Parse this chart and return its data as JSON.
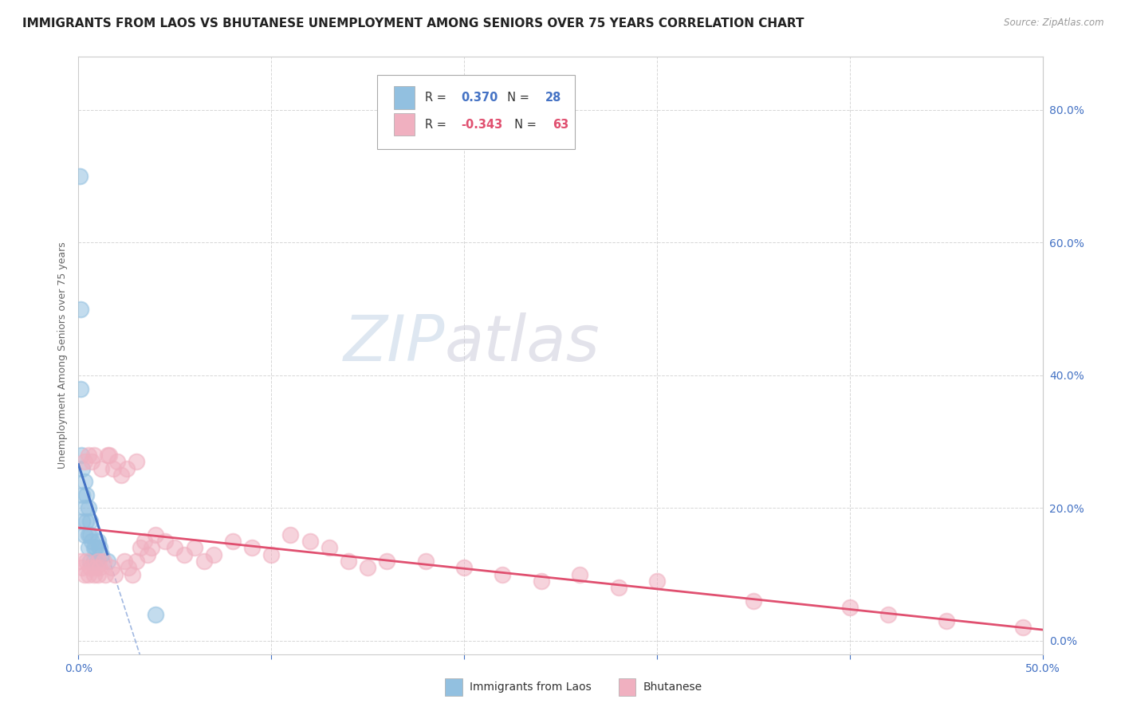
{
  "title": "IMMIGRANTS FROM LAOS VS BHUTANESE UNEMPLOYMENT AMONG SENIORS OVER 75 YEARS CORRELATION CHART",
  "source": "Source: ZipAtlas.com",
  "ylabel": "Unemployment Among Seniors over 75 years",
  "ytick_values": [
    0.0,
    0.2,
    0.4,
    0.6,
    0.8
  ],
  "xlim": [
    0.0,
    0.5
  ],
  "ylim": [
    -0.02,
    0.88
  ],
  "legend_entries": [
    {
      "label": "Immigrants from Laos",
      "R": "0.370",
      "N": "28",
      "color": "#a8c8e8"
    },
    {
      "label": "Bhutanese",
      "R": "-0.343",
      "N": "63",
      "color": "#f4b8c8"
    }
  ],
  "blue_scatter_x": [
    0.0005,
    0.001,
    0.001,
    0.0015,
    0.002,
    0.002,
    0.002,
    0.003,
    0.003,
    0.003,
    0.004,
    0.004,
    0.005,
    0.005,
    0.005,
    0.006,
    0.006,
    0.006,
    0.007,
    0.008,
    0.008,
    0.009,
    0.01,
    0.01,
    0.011,
    0.012,
    0.015,
    0.04
  ],
  "blue_scatter_y": [
    0.7,
    0.5,
    0.38,
    0.28,
    0.26,
    0.22,
    0.18,
    0.24,
    0.2,
    0.16,
    0.22,
    0.18,
    0.2,
    0.16,
    0.14,
    0.18,
    0.16,
    0.12,
    0.15,
    0.14,
    0.12,
    0.14,
    0.15,
    0.12,
    0.14,
    0.13,
    0.12,
    0.04
  ],
  "pink_scatter_x": [
    0.001,
    0.002,
    0.003,
    0.003,
    0.004,
    0.005,
    0.005,
    0.006,
    0.007,
    0.008,
    0.008,
    0.009,
    0.01,
    0.01,
    0.011,
    0.012,
    0.013,
    0.014,
    0.015,
    0.016,
    0.017,
    0.018,
    0.019,
    0.02,
    0.022,
    0.024,
    0.025,
    0.026,
    0.028,
    0.03,
    0.03,
    0.032,
    0.034,
    0.036,
    0.038,
    0.04,
    0.045,
    0.05,
    0.055,
    0.06,
    0.065,
    0.07,
    0.08,
    0.09,
    0.1,
    0.11,
    0.12,
    0.13,
    0.14,
    0.15,
    0.16,
    0.18,
    0.2,
    0.22,
    0.24,
    0.26,
    0.28,
    0.3,
    0.35,
    0.4,
    0.42,
    0.45,
    0.49
  ],
  "pink_scatter_y": [
    0.12,
    0.11,
    0.27,
    0.1,
    0.12,
    0.28,
    0.1,
    0.11,
    0.27,
    0.28,
    0.1,
    0.11,
    0.12,
    0.1,
    0.11,
    0.26,
    0.12,
    0.1,
    0.28,
    0.28,
    0.11,
    0.26,
    0.1,
    0.27,
    0.25,
    0.12,
    0.26,
    0.11,
    0.1,
    0.27,
    0.12,
    0.14,
    0.15,
    0.13,
    0.14,
    0.16,
    0.15,
    0.14,
    0.13,
    0.14,
    0.12,
    0.13,
    0.15,
    0.14,
    0.13,
    0.16,
    0.15,
    0.14,
    0.12,
    0.11,
    0.12,
    0.12,
    0.11,
    0.1,
    0.09,
    0.1,
    0.08,
    0.09,
    0.06,
    0.05,
    0.04,
    0.03,
    0.02
  ],
  "blue_line_color": "#4472c4",
  "pink_line_color": "#e05070",
  "scatter_blue_color": "#92c0e0",
  "scatter_pink_color": "#f0b0c0",
  "background_color": "#ffffff",
  "watermark_zip": "ZIP",
  "watermark_atlas": "atlas",
  "title_fontsize": 11,
  "axis_label_fontsize": 9,
  "tick_fontsize": 10
}
